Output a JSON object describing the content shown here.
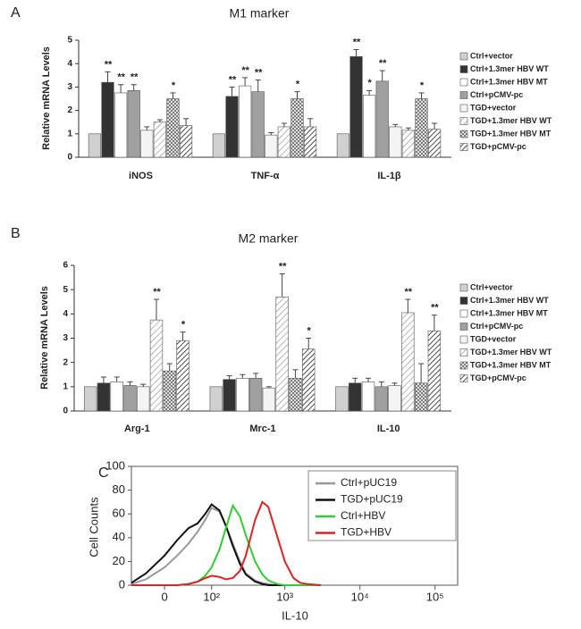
{
  "chart_data": [
    {
      "type": "bar",
      "panel": "A",
      "title": "M1 marker",
      "ylabel": "Relative mRNA Levels",
      "categories": [
        "iNOS",
        "TNF-α",
        "IL-1β"
      ],
      "ylim": [
        0,
        5
      ],
      "yticks": [
        0,
        1,
        2,
        3,
        4,
        5
      ],
      "series": [
        {
          "name": "Ctrl+vector",
          "color": "#d0d0d0",
          "values": [
            1.0,
            1.0,
            1.0
          ],
          "errors": [
            null,
            null,
            null
          ],
          "significance": [
            null,
            null,
            null
          ]
        },
        {
          "name": "Ctrl+1.3mer HBV WT",
          "color": "#333333",
          "values": [
            3.2,
            2.6,
            4.3
          ],
          "errors": [
            0.45,
            0.4,
            0.3
          ],
          "significance": [
            "**",
            "**",
            "**"
          ]
        },
        {
          "name": "Ctrl+1.3mer HBV MT",
          "color": "#ffffff",
          "values": [
            2.75,
            3.05,
            2.65
          ],
          "errors": [
            0.35,
            0.35,
            0.2
          ],
          "significance": [
            "**",
            "**",
            "*"
          ]
        },
        {
          "name": "Ctrl+pCMV-pc",
          "color": "#a0a0a0",
          "values": [
            2.85,
            2.8,
            3.25
          ],
          "errors": [
            0.25,
            0.5,
            0.45
          ],
          "significance": [
            "**",
            "**",
            "**"
          ]
        },
        {
          "name": "TGD+vector",
          "color": "#f4f4f4",
          "values": [
            1.15,
            0.95,
            1.3
          ],
          "errors": [
            0.15,
            0.1,
            0.1
          ],
          "significance": [
            null,
            null,
            null
          ]
        },
        {
          "name": "TGD+1.3mer HBV WT",
          "color": "#ffffff",
          "pattern": "diag-light",
          "values": [
            1.5,
            1.3,
            1.15
          ],
          "errors": [
            0.1,
            0.15,
            0.1
          ],
          "significance": [
            null,
            null,
            null
          ]
        },
        {
          "name": "TGD+1.3mer HBV MT",
          "color": "#ffffff",
          "pattern": "cross",
          "values": [
            2.5,
            2.5,
            2.5
          ],
          "errors": [
            0.25,
            0.3,
            0.25
          ],
          "significance": [
            "*",
            "*",
            "*"
          ]
        },
        {
          "name": "TGD+pCMV-pc",
          "color": "#ffffff",
          "pattern": "diag-dense",
          "values": [
            1.35,
            1.3,
            1.2
          ],
          "errors": [
            0.3,
            0.35,
            0.25
          ],
          "significance": [
            null,
            null,
            null
          ]
        }
      ]
    },
    {
      "type": "bar",
      "panel": "B",
      "title": "M2 marker",
      "ylabel": "Relative mRNA Levels",
      "categories": [
        "Arg-1",
        "Mrc-1",
        "IL-10"
      ],
      "ylim": [
        0,
        6
      ],
      "yticks": [
        0,
        1,
        2,
        3,
        4,
        5,
        6
      ],
      "series": [
        {
          "name": "Ctrl+vector",
          "color": "#d0d0d0",
          "values": [
            1.0,
            1.0,
            1.0
          ],
          "errors": [
            null,
            null,
            null
          ],
          "significance": [
            null,
            null,
            null
          ]
        },
        {
          "name": "Ctrl+1.3mer HBV WT",
          "color": "#333333",
          "values": [
            1.15,
            1.3,
            1.15
          ],
          "errors": [
            0.25,
            0.15,
            0.2
          ],
          "significance": [
            null,
            null,
            null
          ]
        },
        {
          "name": "Ctrl+1.3mer HBV MT",
          "color": "#ffffff",
          "values": [
            1.2,
            1.35,
            1.2
          ],
          "errors": [
            0.2,
            0.15,
            0.15
          ],
          "significance": [
            null,
            null,
            null
          ]
        },
        {
          "name": "Ctrl+pCMV-pc",
          "color": "#a0a0a0",
          "values": [
            1.05,
            1.35,
            1.0
          ],
          "errors": [
            0.15,
            0.2,
            0.2
          ],
          "significance": [
            null,
            null,
            null
          ]
        },
        {
          "name": "TGD+vector",
          "color": "#f4f4f4",
          "values": [
            1.0,
            0.95,
            1.05
          ],
          "errors": [
            0.1,
            0.05,
            0.1
          ],
          "significance": [
            null,
            null,
            null
          ]
        },
        {
          "name": "TGD+1.3mer HBV WT",
          "color": "#ffffff",
          "pattern": "diag-light",
          "values": [
            3.75,
            4.7,
            4.05
          ],
          "errors": [
            0.85,
            0.95,
            0.55
          ],
          "significance": [
            "**",
            "**",
            "**"
          ]
        },
        {
          "name": "TGD+1.3mer HBV MT",
          "color": "#ffffff",
          "pattern": "cross",
          "values": [
            1.65,
            1.35,
            1.15
          ],
          "errors": [
            0.3,
            0.35,
            0.8
          ],
          "significance": [
            null,
            null,
            null
          ]
        },
        {
          "name": "TGD+pCMV-pc",
          "color": "#ffffff",
          "pattern": "diag-dense",
          "values": [
            2.9,
            2.55,
            3.3
          ],
          "errors": [
            0.35,
            0.45,
            0.65
          ],
          "significance": [
            "*",
            "*",
            "**"
          ]
        }
      ]
    },
    {
      "type": "line",
      "panel": "C",
      "xlabel": "IL-10",
      "ylabel": "Cell Counts",
      "xscale": "biexponential",
      "xlim": [
        -60,
        200000
      ],
      "ylim": [
        0,
        100
      ],
      "xticks": [
        0,
        {
          "value": 100,
          "label": "10²"
        },
        {
          "value": 1000,
          "label": "10³"
        },
        {
          "value": 10000,
          "label": "10⁴"
        },
        {
          "value": 100000,
          "label": "10⁵"
        }
      ],
      "yticks": [
        0,
        20,
        40,
        60,
        80,
        100
      ],
      "x": [
        -60,
        -30,
        0,
        20,
        40,
        60,
        80,
        100,
        130,
        160,
        200,
        250,
        300,
        400,
        500,
        600,
        800,
        1000,
        1300,
        1600,
        2000,
        3000
      ],
      "series": [
        {
          "name": "Ctrl+pUC19",
          "color": "#999999",
          "values": [
            1,
            5,
            15,
            25,
            35,
            45,
            55,
            65,
            62,
            50,
            35,
            20,
            10,
            4,
            2,
            1,
            0,
            0,
            0,
            0,
            0,
            0
          ]
        },
        {
          "name": "TGD+pUC19",
          "color": "#111111",
          "values": [
            2,
            10,
            25,
            38,
            48,
            52,
            60,
            68,
            63,
            50,
            33,
            18,
            9,
            3,
            1,
            0,
            0,
            0,
            0,
            0,
            0,
            0
          ]
        },
        {
          "name": "Ctrl+HBV",
          "color": "#33cc33",
          "values": [
            0,
            0,
            0,
            0,
            1,
            3,
            8,
            15,
            30,
            48,
            67,
            58,
            42,
            20,
            9,
            4,
            1,
            0,
            0,
            0,
            0,
            0
          ]
        },
        {
          "name": "TGD+HBV",
          "color": "#dd2222",
          "values": [
            0,
            0,
            0,
            0,
            1,
            3,
            6,
            8,
            7,
            5,
            6,
            12,
            25,
            55,
            70,
            66,
            40,
            20,
            6,
            2,
            1,
            0
          ]
        }
      ]
    }
  ]
}
